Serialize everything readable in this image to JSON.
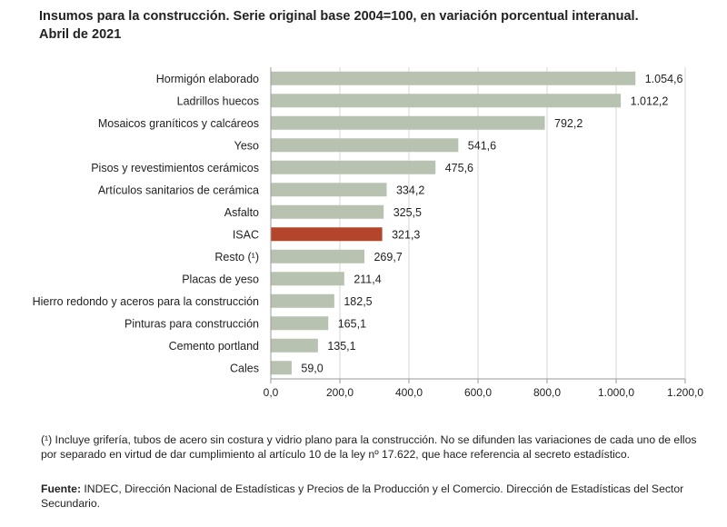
{
  "header": {
    "title_line1": "Insumos para la construcción. Serie original base 2004=100, en variación porcentual interanual.",
    "title_line2": "Abril de 2021"
  },
  "chart_data": {
    "type": "bar",
    "orientation": "horizontal",
    "title": "Insumos para la construcción. Serie original base 2004=100, en variación porcentual interanual. Abril de 2021",
    "categories": [
      "Hormigón elaborado",
      "Ladrillos huecos",
      "Mosaicos graníticos y calcáreos",
      "Yeso",
      "Pisos y revestimientos cerámicos",
      "Artículos sanitarios de cerámica",
      "Asfalto",
      "ISAC",
      "Resto (¹)",
      "Placas de yeso",
      "Hierro redondo y aceros para la construcción",
      "Pinturas para construcción",
      "Cemento portland",
      "Cales"
    ],
    "values": [
      1054.6,
      1012.2,
      792.2,
      541.6,
      475.6,
      334.2,
      325.5,
      321.3,
      269.7,
      211.4,
      182.5,
      165.1,
      135.1,
      59.0
    ],
    "value_labels": [
      "1.054,6",
      "1.012,2",
      "792,2",
      "541,6",
      "475,6",
      "334,2",
      "325,5",
      "321,3",
      "269,7",
      "211,4",
      "182,5",
      "165,1",
      "135,1",
      "59,0"
    ],
    "highlight": "ISAC",
    "xlim": [
      0,
      1200
    ],
    "xticks": [
      0,
      200,
      400,
      600,
      800,
      1000,
      1200
    ],
    "xtick_labels": [
      "0,0",
      "200,0",
      "400,0",
      "600,0",
      "800,0",
      "1.000,0",
      "1.200,0"
    ],
    "grid": true,
    "colors": {
      "bar": "#b7c2b0",
      "highlight": "#b5452a",
      "grid": "#d5d5d5",
      "axis": "#9a9a9a"
    }
  },
  "footnote": "(¹) Incluye grifería, tubos de acero sin costura y vidrio plano para la construcción. No se difunden las variaciones de cada uno de ellos por separado en virtud de dar cumplimiento al artículo 10 de la ley nº 17.622, que hace referencia al secreto estadístico.",
  "source": {
    "label": "Fuente:",
    "text": " INDEC, Dirección Nacional de Estadísticas y Precios de la Producción y el Comercio. Dirección de Estadísticas del Sector Secundario."
  }
}
